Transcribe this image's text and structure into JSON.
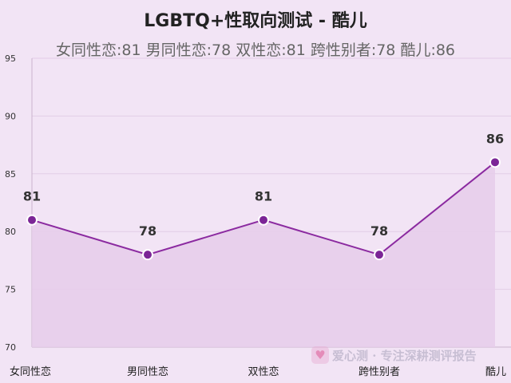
{
  "title": "LGBTQ+性取向测试 - 酷儿",
  "subtitle": "女同性恋:81 男同性恋:78 双性恋:81 跨性别者:78 酷儿:86",
  "watermark": {
    "text": "爱心测 · 专注深耕测评报告"
  },
  "colors": {
    "background": "#f2e4f5",
    "line": "#8b2aa0",
    "fill": "#e6cdea",
    "point": "#7b2596",
    "grid": "#e2cde6"
  },
  "chart_data": {
    "type": "area",
    "categories": [
      "女同性恋",
      "男同性恋",
      "双性恋",
      "跨性别者",
      "酷儿"
    ],
    "values": [
      81,
      78,
      81,
      78,
      86
    ],
    "ylim": [
      70,
      95
    ],
    "yticks": [
      70,
      75,
      80,
      85,
      90,
      95
    ],
    "grid": true,
    "xlabel": "",
    "ylabel": ""
  }
}
